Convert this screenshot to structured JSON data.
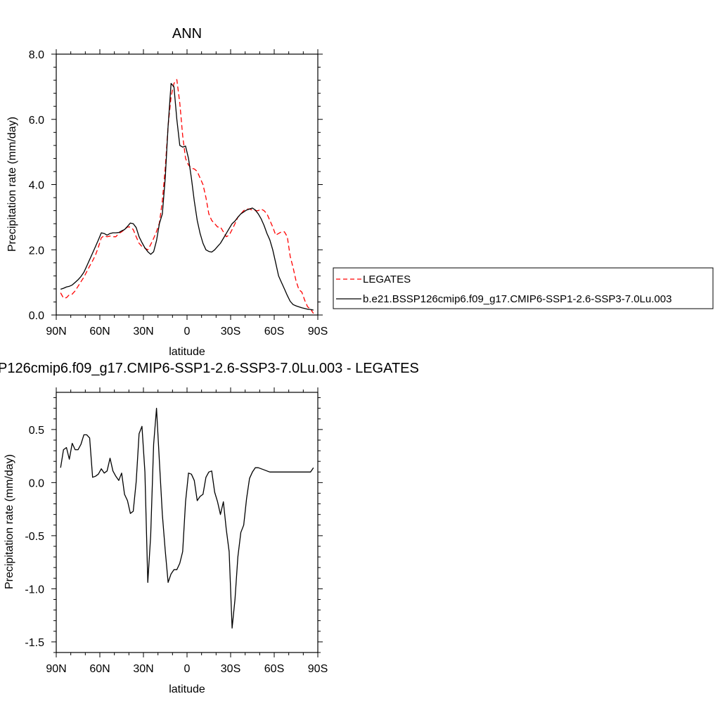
{
  "chart_data": [
    {
      "type": "line",
      "title": "ANN",
      "xlabel": "latitude",
      "ylabel": "Precipitation rate (mm/day)",
      "xlim": [
        90,
        -90
      ],
      "ylim": [
        0,
        8
      ],
      "yticks": [
        0,
        2,
        4,
        6,
        8
      ],
      "ytick_labels": [
        "0.0",
        "2.0",
        "4.0",
        "6.0",
        "8.0"
      ],
      "xticks": [
        90,
        60,
        30,
        0,
        -30,
        -60,
        -90
      ],
      "xtick_labels": [
        "90N",
        "60N",
        "30N",
        "0",
        "30S",
        "60S",
        "90S"
      ],
      "legend": "right",
      "series": [
        {
          "name": "LEGATES",
          "color": "#ff0000",
          "dashed": true,
          "x": [
            87,
            85,
            83,
            81,
            79,
            77,
            75,
            73,
            71,
            69,
            67,
            65,
            63,
            61,
            59,
            57,
            55,
            53,
            51,
            49,
            47,
            45,
            43,
            41,
            39,
            37,
            35,
            33,
            31,
            29,
            27,
            25,
            23,
            21,
            19,
            17,
            15,
            13,
            11,
            9,
            7,
            5,
            3,
            1,
            -1,
            -3,
            -5,
            -7,
            -9,
            -11,
            -13,
            -15,
            -17,
            -19,
            -21,
            -23,
            -25,
            -27,
            -29,
            -31,
            -33,
            -35,
            -37,
            -39,
            -41,
            -43,
            -45,
            -47,
            -49,
            -51,
            -53,
            -55,
            -57,
            -59,
            -61,
            -63,
            -65,
            -67,
            -69,
            -71,
            -73,
            -75,
            -77,
            -79,
            -81,
            -83,
            -85,
            -87
          ],
          "y": [
            0.68,
            0.52,
            0.53,
            0.62,
            0.64,
            0.74,
            0.88,
            1.02,
            1.16,
            1.33,
            1.5,
            1.66,
            1.84,
            2.08,
            2.37,
            2.43,
            2.4,
            2.42,
            2.4,
            2.4,
            2.5,
            2.55,
            2.62,
            2.7,
            2.7,
            2.62,
            2.4,
            2.2,
            2.1,
            2.05,
            2.0,
            2.16,
            2.35,
            2.56,
            2.82,
            3.5,
            4.5,
            5.8,
            6.7,
            7.1,
            7.22,
            6.5,
            5.5,
            4.8,
            4.6,
            4.5,
            4.48,
            4.4,
            4.2,
            4.0,
            3.6,
            3.1,
            2.9,
            2.8,
            2.7,
            2.7,
            2.55,
            2.4,
            2.45,
            2.62,
            2.8,
            3.0,
            3.1,
            3.2,
            3.25,
            3.25,
            3.22,
            3.2,
            3.2,
            3.25,
            3.2,
            3.1,
            2.9,
            2.7,
            2.45,
            2.5,
            2.55,
            2.55,
            2.4,
            1.8,
            1.45,
            1.05,
            0.78,
            0.7,
            0.45,
            0.25,
            0.18,
            0.05
          ]
        },
        {
          "name": "b.e21.BSSP126cmip6.f09_g17.CMIP6-SSP1-2.6-SSP3-7.0Lu.003",
          "color": "#000000",
          "dashed": false,
          "x": [
            87,
            85,
            83,
            81,
            79,
            77,
            75,
            73,
            71,
            69,
            67,
            65,
            63,
            61,
            59,
            57,
            55,
            53,
            51,
            49,
            47,
            45,
            43,
            41,
            39,
            37,
            35,
            33,
            31,
            29,
            27,
            25,
            23,
            21,
            19,
            17,
            15,
            13,
            11,
            9,
            7,
            5,
            3,
            1,
            -1,
            -3,
            -5,
            -7,
            -9,
            -11,
            -13,
            -15,
            -17,
            -19,
            -21,
            -23,
            -25,
            -27,
            -29,
            -31,
            -33,
            -35,
            -37,
            -39,
            -41,
            -43,
            -45,
            -47,
            -49,
            -51,
            -53,
            -55,
            -57,
            -59,
            -61,
            -63,
            -65,
            -67,
            -69,
            -71,
            -73,
            -75,
            -77,
            -79,
            -81,
            -83,
            -85,
            -87
          ],
          "y": [
            0.79,
            0.82,
            0.86,
            0.88,
            0.92,
            1.0,
            1.08,
            1.18,
            1.31,
            1.5,
            1.7,
            1.9,
            2.1,
            2.3,
            2.52,
            2.5,
            2.45,
            2.5,
            2.52,
            2.52,
            2.53,
            2.58,
            2.62,
            2.72,
            2.82,
            2.8,
            2.68,
            2.4,
            2.22,
            2.06,
            1.94,
            1.86,
            1.94,
            2.28,
            2.8,
            3.1,
            4.2,
            5.8,
            7.1,
            7.0,
            6.0,
            5.2,
            5.15,
            5.18,
            4.8,
            4.2,
            3.5,
            2.9,
            2.5,
            2.2,
            2.0,
            1.95,
            1.93,
            2.0,
            2.1,
            2.2,
            2.35,
            2.5,
            2.65,
            2.8,
            2.88,
            3.0,
            3.1,
            3.16,
            3.22,
            3.25,
            3.28,
            3.22,
            3.1,
            2.95,
            2.75,
            2.5,
            2.3,
            2.0,
            1.6,
            1.2,
            1.0,
            0.8,
            0.6,
            0.42,
            0.32,
            0.28,
            0.25,
            0.22,
            0.2,
            0.18,
            0.17,
            0.15
          ]
        }
      ]
    },
    {
      "type": "line",
      "title": "P126cmip6.f09_g17.CMIP6-SSP1-2.6-SSP3-7.0Lu.003 - LEGATES",
      "xlabel": "latitude",
      "ylabel": "Precipitation rate (mm/day)",
      "xlim": [
        90,
        -90
      ],
      "ylim": [
        -1.6,
        0.85
      ],
      "yticks": [
        -1.5,
        -1.0,
        -0.5,
        0.0,
        0.5
      ],
      "ytick_labels": [
        "-1.5",
        "-1.0",
        "-0.5",
        "0.0",
        "0.5"
      ],
      "xticks": [
        90,
        60,
        30,
        0,
        -30,
        -60,
        -90
      ],
      "xtick_labels": [
        "90N",
        "60N",
        "30N",
        "0",
        "30S",
        "60S",
        "90S"
      ],
      "series": [
        {
          "color": "#000000",
          "dashed": false,
          "x": [
            87,
            85,
            83,
            81,
            79,
            77,
            75,
            73,
            71,
            69,
            67,
            65,
            63,
            61,
            59,
            57,
            55,
            53,
            51,
            49,
            47,
            45,
            43,
            41,
            39,
            37,
            35,
            33,
            31,
            29,
            27,
            25,
            23,
            21,
            19,
            17,
            15,
            13,
            11,
            9,
            7,
            5,
            3,
            1,
            -1,
            -3,
            -5,
            -7,
            -9,
            -11,
            -13,
            -15,
            -17,
            -19,
            -21,
            -23,
            -25,
            -27,
            -29,
            -31,
            -33,
            -35,
            -37,
            -39,
            -41,
            -43,
            -45,
            -47,
            -49,
            -51,
            -53,
            -55,
            -57,
            -59,
            -61,
            -63,
            -65,
            -67,
            -69,
            -71,
            -73,
            -75,
            -77,
            -79,
            -81,
            -83,
            -85,
            -87
          ],
          "y": [
            0.14,
            0.31,
            0.33,
            0.22,
            0.37,
            0.31,
            0.31,
            0.36,
            0.45,
            0.45,
            0.42,
            0.05,
            0.06,
            0.08,
            0.13,
            0.09,
            0.11,
            0.23,
            0.11,
            0.06,
            0.02,
            0.09,
            -0.11,
            -0.17,
            -0.29,
            -0.27,
            0.01,
            0.46,
            0.53,
            0.1,
            -0.94,
            -0.5,
            0.36,
            0.7,
            0.2,
            -0.3,
            -0.64,
            -0.94,
            -0.86,
            -0.82,
            -0.82,
            -0.76,
            -0.65,
            -0.18,
            0.09,
            0.08,
            0.02,
            -0.17,
            -0.13,
            -0.11,
            0.05,
            0.1,
            0.11,
            -0.09,
            -0.18,
            -0.3,
            -0.18,
            -0.44,
            -0.65,
            -1.37,
            -1.1,
            -0.7,
            -0.47,
            -0.4,
            -0.15,
            0.04,
            0.1,
            0.14,
            0.14,
            0.13,
            0.12,
            0.11,
            0.1,
            0.1,
            0.1,
            0.1,
            0.1,
            0.1,
            0.1,
            0.1,
            0.1,
            0.1,
            0.1,
            0.1,
            0.1,
            0.1,
            0.1,
            0.14
          ]
        }
      ]
    }
  ]
}
